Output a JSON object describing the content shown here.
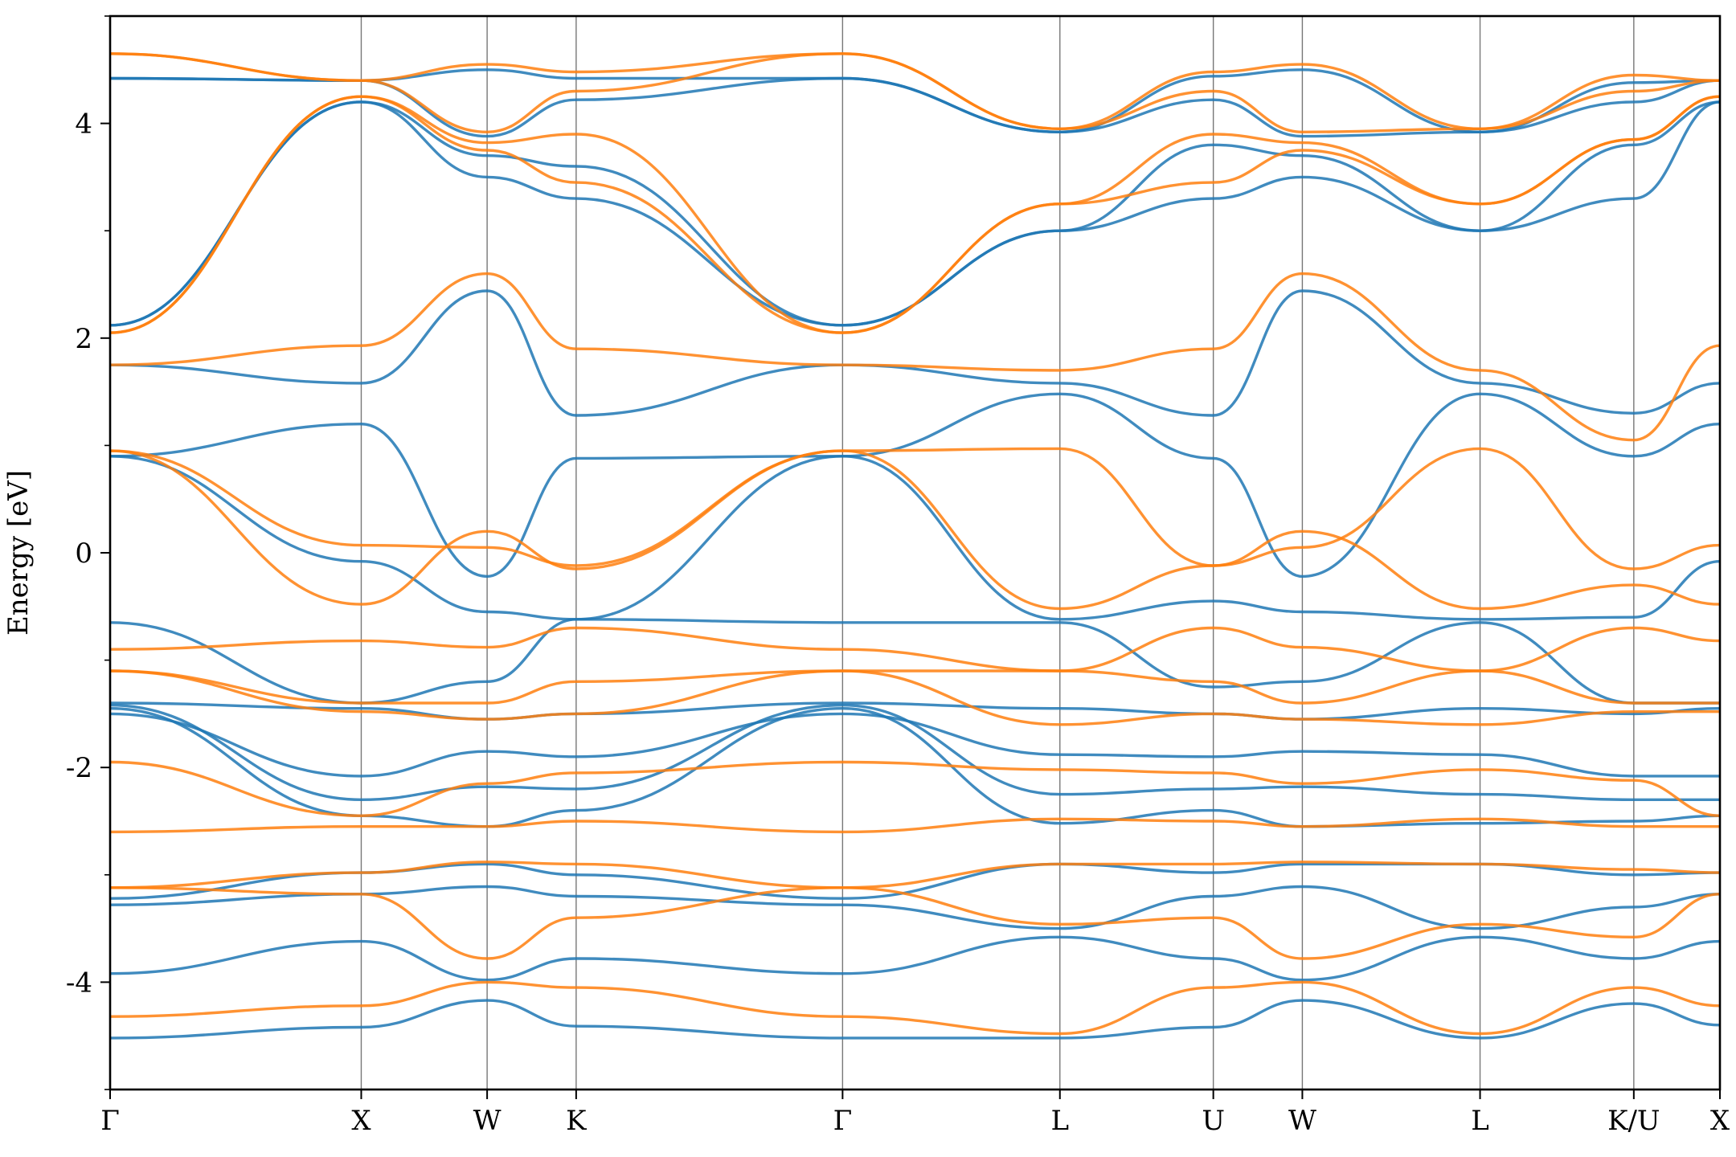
{
  "chart_data": {
    "type": "line",
    "title": "",
    "xlabel": "",
    "ylabel": "Energy [eV]",
    "ylim": [
      -5,
      5
    ],
    "yticks": [
      -4,
      -2,
      0,
      2,
      4
    ],
    "yticks_minor": [
      -5,
      -3,
      -1,
      1,
      3,
      5
    ],
    "kpath": [
      {
        "label": "Γ",
        "pos": 0.0
      },
      {
        "label": "X",
        "pos": 0.156
      },
      {
        "label": "W",
        "pos": 0.2342
      },
      {
        "label": "K",
        "pos": 0.2895
      },
      {
        "label": "Γ",
        "pos": 0.455
      },
      {
        "label": "L",
        "pos": 0.59
      },
      {
        "label": "U",
        "pos": 0.6853
      },
      {
        "label": "W",
        "pos": 0.7406
      },
      {
        "label": "L",
        "pos": 0.851
      },
      {
        "label": "K/U",
        "pos": 0.9465
      },
      {
        "label": "X",
        "pos": 1.0
      }
    ],
    "grid": false,
    "legend": "none",
    "series": [
      {
        "color": "#1f77b4",
        "bands": [
          [
            -4.52,
            -4.42,
            -4.17,
            -4.41,
            -4.52,
            -4.52,
            -4.42,
            -4.17,
            -4.52,
            -4.2,
            -4.4
          ],
          [
            -3.92,
            -3.62,
            -3.98,
            -3.78,
            -3.92,
            -3.58,
            -3.78,
            -3.98,
            -3.58,
            -3.78,
            -3.62
          ],
          [
            -3.28,
            -3.18,
            -3.11,
            -3.2,
            -3.28,
            -3.5,
            -3.2,
            -3.11,
            -3.5,
            -3.3,
            -3.18
          ],
          [
            -3.22,
            -2.98,
            -2.9,
            -3.0,
            -3.22,
            -2.9,
            -2.98,
            -2.9,
            -2.9,
            -3.0,
            -2.98
          ],
          [
            -1.45,
            -2.45,
            -2.55,
            -2.4,
            -1.45,
            -2.52,
            -2.4,
            -2.55,
            -2.52,
            -2.5,
            -2.45
          ],
          [
            -1.42,
            -2.3,
            -2.18,
            -2.2,
            -1.42,
            -2.25,
            -2.2,
            -2.18,
            -2.25,
            -2.3,
            -2.3
          ],
          [
            -1.5,
            -2.08,
            -1.85,
            -1.9,
            -1.5,
            -1.88,
            -1.9,
            -1.85,
            -1.88,
            -2.08,
            -2.08
          ],
          [
            -1.4,
            -1.45,
            -1.55,
            -1.5,
            -1.4,
            -1.45,
            -1.5,
            -1.55,
            -1.45,
            -1.5,
            -1.45
          ],
          [
            -0.65,
            -1.4,
            -1.2,
            -0.62,
            -0.65,
            -0.65,
            -1.25,
            -1.2,
            -0.65,
            -1.4,
            -1.4
          ],
          [
            0.9,
            -0.08,
            -0.55,
            -0.62,
            0.9,
            -0.62,
            -0.45,
            -0.55,
            -0.62,
            -0.6,
            -0.08
          ],
          [
            0.9,
            1.2,
            -0.22,
            0.88,
            0.9,
            1.48,
            0.88,
            -0.22,
            1.48,
            0.9,
            1.2
          ],
          [
            1.75,
            1.58,
            2.44,
            1.28,
            1.75,
            1.58,
            1.28,
            2.44,
            1.58,
            1.3,
            1.58
          ],
          [
            2.12,
            4.2,
            3.5,
            3.3,
            2.12,
            3.0,
            3.3,
            3.5,
            3.0,
            3.3,
            4.2
          ],
          [
            2.12,
            4.2,
            3.7,
            3.6,
            2.12,
            3.0,
            3.8,
            3.7,
            3.0,
            3.8,
            4.2
          ],
          [
            4.42,
            4.4,
            3.88,
            4.22,
            4.42,
            3.92,
            4.22,
            3.88,
            3.92,
            4.2,
            4.4
          ],
          [
            4.42,
            4.4,
            4.5,
            4.42,
            4.42,
            3.92,
            4.44,
            4.5,
            3.92,
            4.38,
            4.4
          ]
        ]
      },
      {
        "color": "#ff7f0e",
        "bands": [
          [
            -4.32,
            -4.22,
            -4.0,
            -4.05,
            -4.32,
            -4.48,
            -4.05,
            -4.0,
            -4.48,
            -4.05,
            -4.22
          ],
          [
            -3.12,
            -3.18,
            -3.78,
            -3.4,
            -3.12,
            -3.46,
            -3.4,
            -3.78,
            -3.46,
            -3.58,
            -3.18
          ],
          [
            -3.12,
            -2.98,
            -2.88,
            -2.9,
            -3.12,
            -2.9,
            -2.9,
            -2.88,
            -2.9,
            -2.95,
            -2.98
          ],
          [
            -2.6,
            -2.55,
            -2.55,
            -2.5,
            -2.6,
            -2.48,
            -2.5,
            -2.55,
            -2.48,
            -2.55,
            -2.55
          ],
          [
            -1.95,
            -2.45,
            -2.15,
            -2.05,
            -1.95,
            -2.02,
            -2.05,
            -2.15,
            -2.02,
            -2.12,
            -2.45
          ],
          [
            -1.1,
            -1.48,
            -1.55,
            -1.5,
            -1.1,
            -1.6,
            -1.5,
            -1.55,
            -1.6,
            -1.48,
            -1.48
          ],
          [
            -1.1,
            -1.4,
            -1.4,
            -1.2,
            -1.1,
            -1.1,
            -1.2,
            -1.4,
            -1.1,
            -1.4,
            -1.4
          ],
          [
            -0.9,
            -0.82,
            -0.88,
            -0.7,
            -0.9,
            -1.1,
            -0.7,
            -0.88,
            -1.1,
            -0.7,
            -0.82
          ],
          [
            0.95,
            -0.48,
            0.2,
            -0.15,
            0.95,
            -0.52,
            -0.12,
            0.2,
            -0.52,
            -0.3,
            -0.48
          ],
          [
            0.95,
            0.07,
            0.05,
            -0.12,
            0.95,
            0.97,
            -0.12,
            0.05,
            0.97,
            -0.15,
            0.07
          ],
          [
            1.75,
            1.93,
            2.6,
            1.9,
            1.75,
            1.7,
            1.9,
            2.6,
            1.7,
            1.05,
            1.93
          ],
          [
            2.05,
            4.25,
            3.75,
            3.45,
            2.05,
            3.25,
            3.45,
            3.75,
            3.25,
            3.85,
            4.25
          ],
          [
            2.05,
            4.25,
            3.82,
            3.9,
            2.05,
            3.25,
            3.9,
            3.82,
            3.25,
            3.85,
            4.25
          ],
          [
            4.65,
            4.4,
            3.92,
            4.3,
            4.65,
            3.95,
            4.3,
            3.92,
            3.95,
            4.3,
            4.4
          ],
          [
            4.65,
            4.4,
            4.55,
            4.48,
            4.65,
            3.95,
            4.48,
            4.55,
            3.95,
            4.45,
            4.4
          ]
        ]
      }
    ]
  }
}
